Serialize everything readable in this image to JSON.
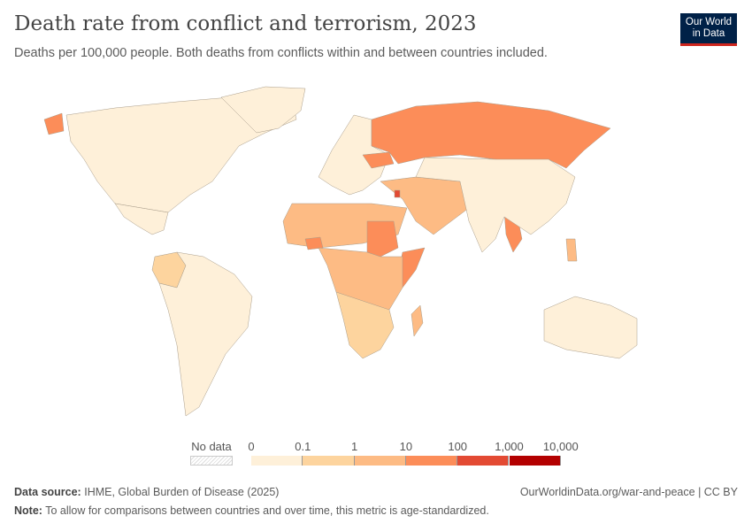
{
  "header": {
    "title": "Death rate from conflict and terrorism, 2023",
    "subtitle": "Deaths per 100,000 people. Both deaths from conflicts within and between countries included.",
    "logo": "Our World in Data"
  },
  "chart_data": {
    "type": "map",
    "title": "Death rate from conflict and terrorism, 2023",
    "unit": "Deaths per 100,000 people",
    "legend": {
      "no_data_label": "No data",
      "ticks": [
        "0",
        "0.1",
        "1",
        "10",
        "100",
        "1,000",
        "10,000"
      ],
      "bins": [
        {
          "min": 0,
          "max": 0.1,
          "color": "#fef0d9"
        },
        {
          "min": 0.1,
          "max": 1,
          "color": "#fdd49e"
        },
        {
          "min": 1,
          "max": 10,
          "color": "#fdbb84"
        },
        {
          "min": 10,
          "max": 100,
          "color": "#fc8d59"
        },
        {
          "min": 100,
          "max": 1000,
          "color": "#e34a33"
        },
        {
          "min": 1000,
          "max": 10000,
          "color": "#b30000"
        }
      ]
    },
    "regions": [
      {
        "name": "North America",
        "bin": 0
      },
      {
        "name": "Greenland",
        "bin": 0
      },
      {
        "name": "Mexico",
        "bin": 0
      },
      {
        "name": "Colombia",
        "bin": 1
      },
      {
        "name": "South America",
        "bin": 0
      },
      {
        "name": "Europe",
        "bin": 0
      },
      {
        "name": "Ukraine",
        "bin": 3
      },
      {
        "name": "Russia",
        "bin": 3
      },
      {
        "name": "Middle East",
        "bin": 2
      },
      {
        "name": "Palestine",
        "bin": 4
      },
      {
        "name": "Sahel",
        "bin": 2
      },
      {
        "name": "Burkina Faso",
        "bin": 3
      },
      {
        "name": "Sudan",
        "bin": 3
      },
      {
        "name": "Somalia",
        "bin": 3
      },
      {
        "name": "Central Africa",
        "bin": 2
      },
      {
        "name": "Southern Africa",
        "bin": 1
      },
      {
        "name": "Madagascar",
        "bin": 2
      },
      {
        "name": "Myanmar",
        "bin": 3
      },
      {
        "name": "Asia",
        "bin": 0
      },
      {
        "name": "Australia",
        "bin": 0
      },
      {
        "name": "Philippines",
        "bin": 2
      },
      {
        "name": "Alaska",
        "bin": 3
      }
    ]
  },
  "footer": {
    "source_label": "Data source:",
    "source": "IHME, Global Burden of Disease (2025)",
    "url": "OurWorldinData.org/war-and-peace | CC BY",
    "note_label": "Note:",
    "note": "To allow for comparisons between countries and over time, this metric is age-standardized."
  }
}
